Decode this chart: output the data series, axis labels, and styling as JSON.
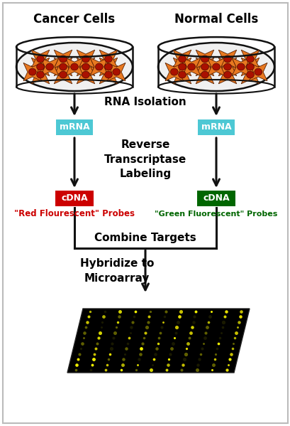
{
  "background_color": "#ffffff",
  "border_color": "#bbbbbb",
  "title_cancer": "Cancer Cells",
  "title_normal": "Normal Cells",
  "rna_isolation_label": "RNA Isolation",
  "reverse_label": "Reverse\nTranscriptase\nLabeling",
  "mrna_label": "mRNA",
  "mrna_color": "#4dc8d4",
  "cdna_left_label": "cDNA",
  "cdna_right_label": "cDNA",
  "cdna_left_color": "#cc0000",
  "cdna_right_color": "#006600",
  "red_probe_label": "\"Red Flourescent\" Probes",
  "green_probe_label": "\"Green Fluorescent\" Probes",
  "combine_label": "Combine Targets",
  "hybridize_label": "Hybridize to\nMicroarray",
  "cell_fill_orange": "#e87820",
  "cell_fill_dark": "#aa1100",
  "dish_outline": "#111111",
  "arrow_color": "#111111",
  "main_fontsize": 11,
  "probe_fontsize": 8.5,
  "figw": 4.1,
  "figh": 5.99,
  "dpi": 100
}
